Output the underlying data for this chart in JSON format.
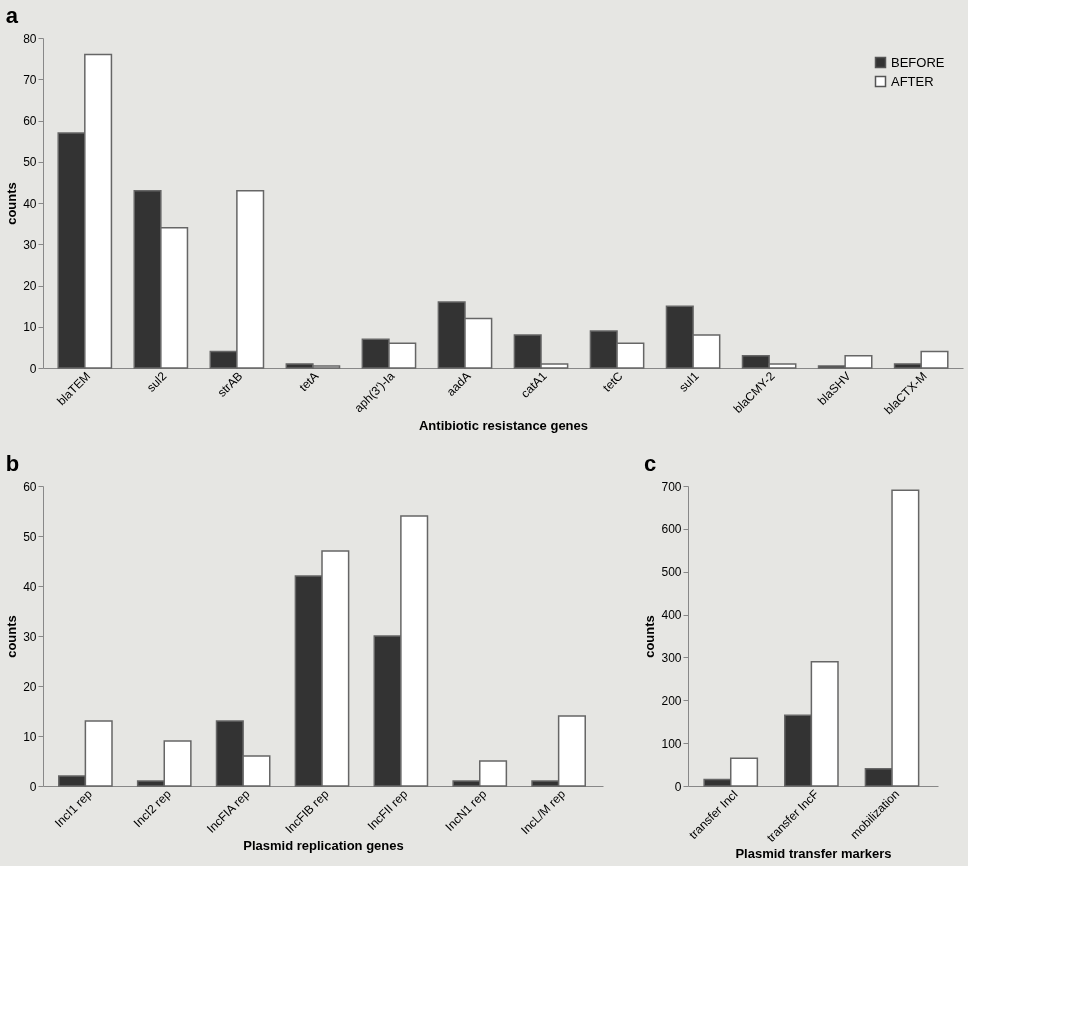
{
  "chart_data": [
    {
      "type": "bar",
      "title": "a",
      "xlabel": "Antibiotic resistance genes",
      "ylabel": "counts",
      "categories": [
        "blaTEM",
        "sul2",
        "strAB",
        "tetA",
        "aph(3')-Ia",
        "aadA",
        "catA1",
        "tetC",
        "sul1",
        "blaCMY-2",
        "blaSHV",
        "blaCTX-M"
      ],
      "series": [
        {
          "name": "BEFORE",
          "color": "#333333",
          "values": [
            57,
            43,
            4,
            1,
            7,
            16,
            8,
            9,
            15,
            3,
            0.5,
            1
          ]
        },
        {
          "name": "AFTER",
          "color": "#ffffff",
          "values": [
            76,
            34,
            43,
            0.5,
            6,
            12,
            1,
            6,
            8,
            1,
            3,
            4
          ]
        }
      ],
      "ylim": [
        0,
        80
      ],
      "yticks": [
        0,
        10,
        20,
        30,
        40,
        50,
        60,
        70,
        80
      ],
      "grid": false,
      "legend": "top right"
    },
    {
      "type": "bar",
      "title": "b",
      "xlabel": "Plasmid replication genes",
      "ylabel": "counts",
      "categories": [
        "IncI1 rep",
        "IncI2 rep",
        "IncFIA rep",
        "IncFIB rep",
        "IncFII rep",
        "IncN1 rep",
        "IncL/M rep"
      ],
      "series": [
        {
          "name": "BEFORE",
          "color": "#333333",
          "values": [
            2,
            1,
            13,
            42,
            30,
            1,
            1
          ]
        },
        {
          "name": "AFTER",
          "color": "#ffffff",
          "values": [
            13,
            9,
            6,
            47,
            54,
            5,
            14
          ]
        }
      ],
      "ylim": [
        0,
        60
      ],
      "yticks": [
        0,
        10,
        20,
        30,
        40,
        50,
        60
      ],
      "grid": false,
      "legend": false
    },
    {
      "type": "bar",
      "title": "c",
      "xlabel": "Plasmid transfer markers",
      "ylabel": "counts",
      "categories": [
        "transfer IncI",
        "transfer IncF",
        "mobilization"
      ],
      "series": [
        {
          "name": "BEFORE",
          "color": "#333333",
          "values": [
            15,
            165,
            40
          ]
        },
        {
          "name": "AFTER",
          "color": "#ffffff",
          "values": [
            65,
            290,
            690
          ]
        }
      ],
      "ylim": [
        0,
        700
      ],
      "yticks": [
        0,
        100,
        200,
        300,
        400,
        500,
        600,
        700
      ],
      "grid": false,
      "legend": false
    }
  ]
}
